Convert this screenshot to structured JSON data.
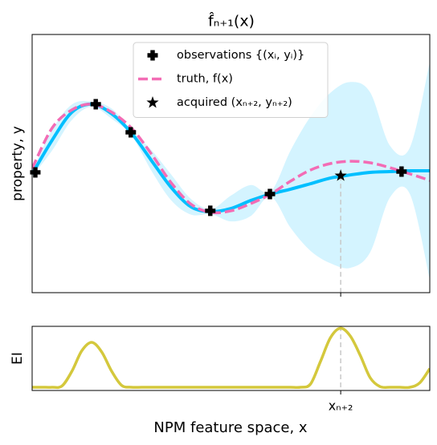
{
  "chart_data": [
    {
      "type": "line",
      "title": "f̂ₙ₊₁(x)",
      "ylabel": "property, y",
      "xlim": [
        0,
        10
      ],
      "ylim": [
        0,
        10
      ],
      "legend": "upper center",
      "x": [
        0,
        0.5,
        1,
        1.5,
        2,
        2.5,
        3,
        3.5,
        4,
        4.5,
        5,
        5.5,
        6,
        6.5,
        7,
        7.5,
        8,
        8.5,
        9,
        9.5,
        10
      ],
      "band": {
        "color": "#d4f4ff",
        "upper": [
          4.7,
          6.3,
          7.29,
          7.4,
          7.13,
          6.28,
          5.52,
          4.57,
          3.62,
          3.24,
          3.76,
          4.17,
          3.92,
          5.51,
          6.82,
          7.74,
          8.16,
          7.76,
          5.69,
          5.62,
          8.92
        ],
        "lower": [
          4.5,
          5.5,
          6.69,
          7.2,
          6.73,
          6.08,
          4.72,
          3.57,
          3.02,
          3.04,
          2.76,
          2.97,
          3.72,
          2.51,
          1.62,
          1.14,
          0.96,
          1.56,
          3.69,
          3.82,
          0.52
        ]
      },
      "mean": {
        "color": "#00bfff",
        "values": [
          4.6,
          5.9,
          6.99,
          7.3,
          6.93,
          6.18,
          5.12,
          4.07,
          3.32,
          3.14,
          3.26,
          3.57,
          3.82,
          4.01,
          4.22,
          4.44,
          4.56,
          4.66,
          4.69,
          4.72,
          4.72
        ]
      },
      "series": [
        {
          "name": "observations {(xᵢ, yᵢ)}",
          "type": "scatter",
          "marker": "plus",
          "color": "#000000",
          "x": [
            0.08,
            1.6,
            2.48,
            4.48,
            5.98,
            9.29
          ],
          "values": [
            4.66,
            7.3,
            6.21,
            3.17,
            3.82,
            4.69
          ]
        },
        {
          "name": "truth, f(x)",
          "type": "line",
          "dash": true,
          "color": "#f36cb5",
          "values": [
            4.81,
            6.37,
            7.08,
            7.3,
            6.99,
            6.37,
            5.37,
            4.25,
            3.42,
            3.11,
            3.17,
            3.45,
            3.82,
            4.32,
            4.75,
            5.0,
            5.09,
            5.03,
            4.84,
            4.6,
            4.35
          ]
        },
        {
          "name": "acquired (xₙ₊₂, yₙ₊₂)",
          "type": "scatter",
          "marker": "star",
          "color": "#000000",
          "x": [
            7.76
          ],
          "values": [
            4.53
          ]
        }
      ]
    },
    {
      "type": "line",
      "ylabel": "EI",
      "xlabel": "NPM feature space, x",
      "xlim": [
        0,
        10
      ],
      "ylim": [
        0,
        1
      ],
      "xticks": [
        {
          "value": 7.76,
          "label": "xₙ₊₂"
        }
      ],
      "x": [
        0,
        0.25,
        0.5,
        0.75,
        1,
        1.25,
        1.5,
        1.75,
        2,
        2.25,
        2.5,
        2.75,
        3,
        3.25,
        3.5,
        3.75,
        4,
        4.25,
        4.5,
        4.75,
        5,
        5.25,
        5.5,
        5.75,
        6,
        6.25,
        6.5,
        6.75,
        7,
        7.25,
        7.5,
        7.75,
        8,
        8.25,
        8.5,
        8.75,
        9,
        9.25,
        9.5,
        9.75,
        10
      ],
      "series": [
        {
          "color": "#d4c83c",
          "values": [
            0.05,
            0.05,
            0.05,
            0.07,
            0.3,
            0.62,
            0.75,
            0.6,
            0.3,
            0.08,
            0.05,
            0.05,
            0.05,
            0.05,
            0.05,
            0.05,
            0.05,
            0.05,
            0.05,
            0.05,
            0.05,
            0.05,
            0.05,
            0.05,
            0.05,
            0.05,
            0.05,
            0.05,
            0.1,
            0.45,
            0.82,
            0.97,
            0.85,
            0.55,
            0.2,
            0.06,
            0.05,
            0.05,
            0.05,
            0.12,
            0.34
          ]
        }
      ]
    }
  ]
}
